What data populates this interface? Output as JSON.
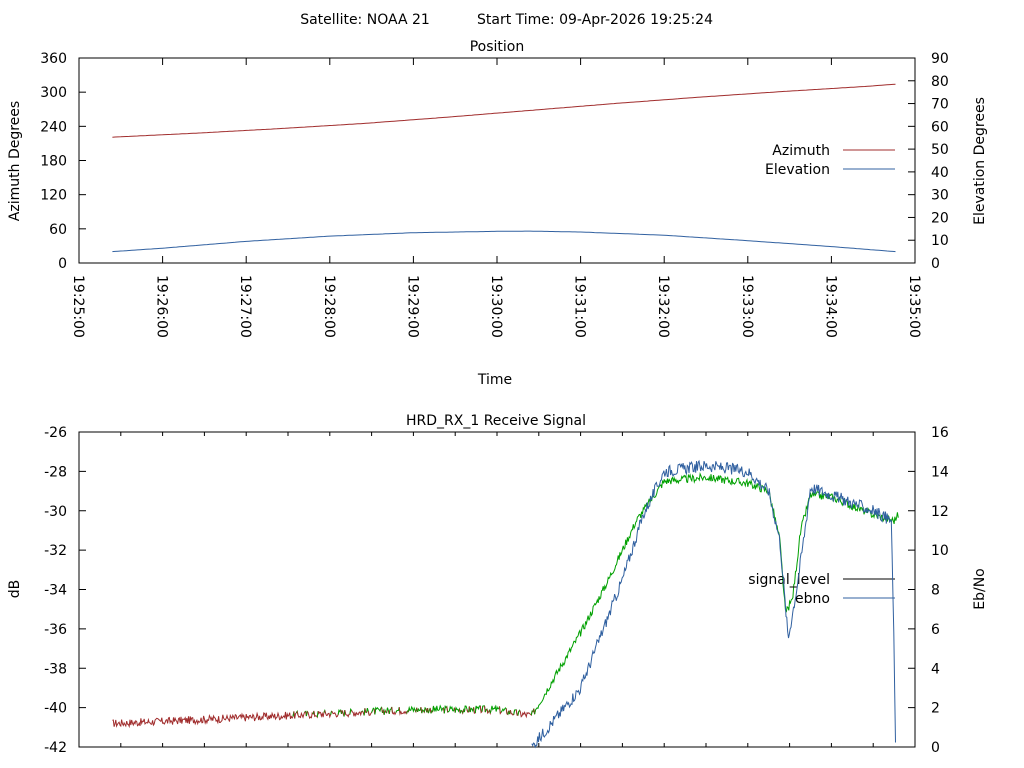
{
  "header": {
    "satellite_label": "Satellite: NOAA 21",
    "start_label": "Start Time: 09-Apr-2026 19:25:24"
  },
  "chart_data": [
    {
      "type": "line",
      "title": "Position",
      "xlabel": "Time",
      "ylabel": "Azimuth Degrees",
      "y2label": "Elevation Degrees",
      "ylim": [
        0,
        360
      ],
      "y2lim": [
        0,
        90
      ],
      "yticks": [
        "0",
        "60",
        "120",
        "180",
        "240",
        "300",
        "360"
      ],
      "y2ticks": [
        "0",
        "10",
        "20",
        "30",
        "40",
        "50",
        "60",
        "70",
        "80",
        "90"
      ],
      "xticks": [
        "19:25:00",
        "19:26:00",
        "19:27:00",
        "19:28:00",
        "19:29:00",
        "19:30:00",
        "19:31:00",
        "19:32:00",
        "19:33:00",
        "19:34:00",
        "19:35:00"
      ],
      "xlim": [
        "19:25:00",
        "19:35:00"
      ],
      "grid": false,
      "legend_position": "right-middle",
      "series": [
        {
          "name": "Azimuth",
          "axis": "left",
          "color": "#a02c2c",
          "x": [
            "19:25:24",
            "19:26:24",
            "19:27:24",
            "19:28:24",
            "19:29:24",
            "19:30:24",
            "19:31:24",
            "19:32:24",
            "19:33:24",
            "19:34:24",
            "19:34:46"
          ],
          "values": [
            221,
            228,
            236,
            245,
            256,
            268,
            280,
            291,
            301,
            310,
            314
          ]
        },
        {
          "name": "Elevation",
          "axis": "right",
          "color": "#3060a0",
          "x": [
            "19:25:24",
            "19:26:00",
            "19:27:00",
            "19:28:00",
            "19:29:00",
            "19:30:00",
            "19:30:24",
            "19:31:00",
            "19:32:00",
            "19:33:00",
            "19:34:00",
            "19:34:46"
          ],
          "values": [
            5,
            6.5,
            9.5,
            11.8,
            13.3,
            13.9,
            14,
            13.6,
            12.2,
            9.8,
            7.2,
            5
          ]
        }
      ]
    },
    {
      "type": "line",
      "title": "HRD_RX_1 Receive Signal",
      "ylabel": "dB",
      "y2label": "Eb/No",
      "ylim": [
        -42,
        -26
      ],
      "y2lim": [
        0,
        16
      ],
      "yticks": [
        "-42",
        "-40",
        "-38",
        "-36",
        "-34",
        "-32",
        "-30",
        "-28",
        "-26"
      ],
      "y2ticks": [
        "0",
        "2",
        "4",
        "6",
        "8",
        "10",
        "12",
        "14",
        "16"
      ],
      "xlim": [
        "19:25:00",
        "19:35:00"
      ],
      "minor_xtick_seconds": 30,
      "grid": false,
      "legend_position": "right-middle",
      "legend_colors": [
        "#000000",
        "#3060a0"
      ],
      "series": [
        {
          "name": "signal_level",
          "axis": "left",
          "color": "#a02c2c",
          "color_above_threshold": "#00a000",
          "threshold": -40.2,
          "noise": 0.1,
          "x": [
            "19:25:24",
            "19:26:00",
            "19:27:00",
            "19:28:00",
            "19:29:00",
            "19:30:00",
            "19:30:15",
            "19:30:25",
            "19:30:45",
            "19:31:00",
            "19:31:20",
            "19:31:40",
            "19:32:00",
            "19:32:30",
            "19:33:00",
            "19:33:15",
            "19:33:23",
            "19:33:27",
            "19:33:32",
            "19:33:38",
            "19:33:45",
            "19:34:00",
            "19:34:30",
            "19:34:45",
            "19:34:48"
          ],
          "values": [
            -40.8,
            -40.7,
            -40.5,
            -40.3,
            -40.1,
            -40.1,
            -40.3,
            -40.4,
            -38.0,
            -36.2,
            -33.5,
            -30.5,
            -28.5,
            -28.3,
            -28.6,
            -29.0,
            -31.5,
            -35.2,
            -34.5,
            -31.0,
            -29.2,
            -29.3,
            -30.2,
            -30.5,
            -30.2
          ]
        },
        {
          "name": "ebno",
          "axis": "right",
          "color": "#3060a0",
          "noise": 0.15,
          "x": [
            "19:30:25",
            "19:31:00",
            "19:31:30",
            "19:31:45",
            "19:32:00",
            "19:32:30",
            "19:33:00",
            "19:33:15",
            "19:33:23",
            "19:33:29",
            "19:33:35",
            "19:33:40",
            "19:33:45",
            "19:34:00",
            "19:34:30",
            "19:34:43",
            "19:34:45",
            "19:34:46"
          ],
          "values": [
            0,
            3,
            8.5,
            11.8,
            14.0,
            14.3,
            14.0,
            13.0,
            10.5,
            5.5,
            8.0,
            10.5,
            13.2,
            12.8,
            12.0,
            11.5,
            5,
            0
          ]
        }
      ]
    }
  ]
}
